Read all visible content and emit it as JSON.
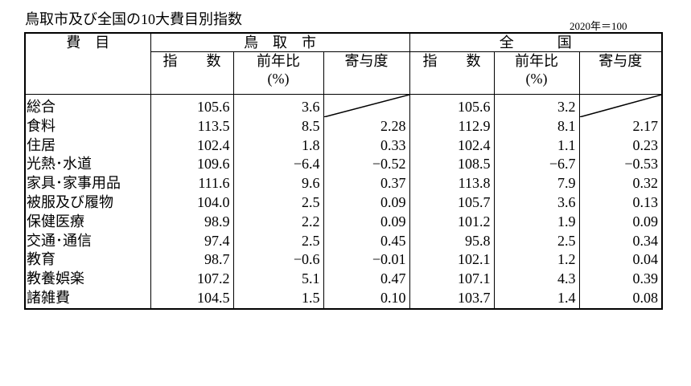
{
  "header": {
    "title": "鳥取市及び全国の10大費目別指数",
    "note": "2020年＝100"
  },
  "table": {
    "item_header": "費　目",
    "groups": [
      "鳥　取　市",
      "全　　　国"
    ],
    "columns": [
      {
        "label": "指　　数",
        "unit": null
      },
      {
        "label": "前年比",
        "unit": "(%)"
      },
      {
        "label": "寄与度",
        "unit": null
      },
      {
        "label": "指　　数",
        "unit": null
      },
      {
        "label": "前年比",
        "unit": "(%)"
      },
      {
        "label": "寄与度",
        "unit": null
      }
    ],
    "rows": [
      [
        "総合",
        "105.6",
        "3.6",
        null,
        "105.6",
        "3.2",
        null
      ],
      [
        "食料",
        "113.5",
        "8.5",
        "2.28",
        "112.9",
        "8.1",
        "2.17"
      ],
      [
        "住居",
        "102.4",
        "1.8",
        "0.33",
        "102.4",
        "1.1",
        "0.23"
      ],
      [
        "光熱･水道",
        "109.6",
        "−6.4",
        "−0.52",
        "108.5",
        "−6.7",
        "−0.53"
      ],
      [
        "家具･家事用品",
        "111.6",
        "9.6",
        "0.37",
        "113.8",
        "7.9",
        "0.32"
      ],
      [
        "被服及び履物",
        "104.0",
        "2.5",
        "0.09",
        "105.7",
        "3.6",
        "0.13"
      ],
      [
        "保健医療",
        "98.9",
        "2.2",
        "0.09",
        "101.2",
        "1.9",
        "0.09"
      ],
      [
        "交通･通信",
        "97.4",
        "2.5",
        "0.45",
        "95.8",
        "2.5",
        "0.34"
      ],
      [
        "教育",
        "98.7",
        "−0.6",
        "−0.01",
        "102.1",
        "1.2",
        "0.04"
      ],
      [
        "教養娯楽",
        "107.2",
        "5.1",
        "0.47",
        "107.1",
        "4.3",
        "0.39"
      ],
      [
        "諸雑費",
        "104.5",
        "1.5",
        "0.10",
        "103.7",
        "1.4",
        "0.08"
      ]
    ]
  }
}
